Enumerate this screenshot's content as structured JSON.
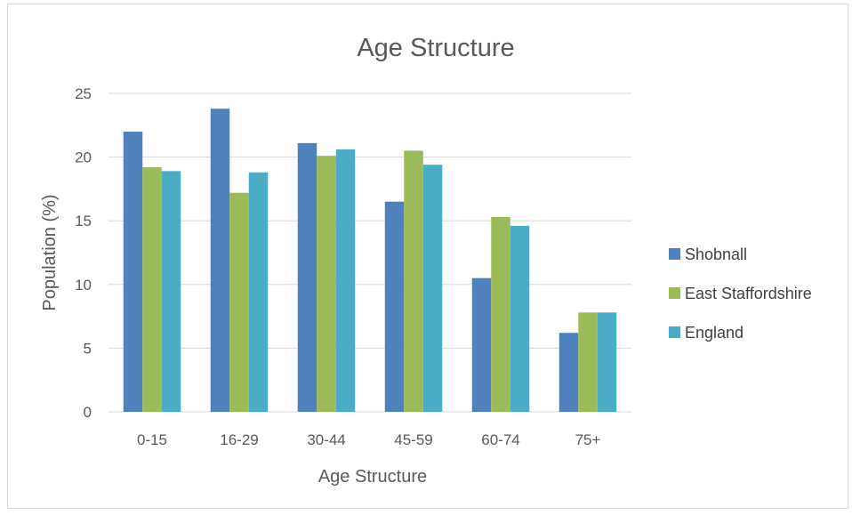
{
  "chart_data": {
    "type": "bar",
    "title": "Age Structure",
    "xlabel": "Age Structure",
    "ylabel": "Population (%)",
    "ylim": [
      0,
      25
    ],
    "yticks": [
      0,
      5,
      10,
      15,
      20,
      25
    ],
    "grid": true,
    "legend_position": "right",
    "categories": [
      "0-15",
      "16-29",
      "30-44",
      "45-59",
      "60-74",
      "75+"
    ],
    "series": [
      {
        "name": "Shobnall",
        "color": "#4f81bd",
        "values": [
          22.0,
          23.8,
          21.1,
          16.5,
          10.5,
          6.2
        ]
      },
      {
        "name": "East Staffordshire",
        "color": "#9bbb59",
        "values": [
          19.2,
          17.2,
          20.1,
          20.5,
          15.3,
          7.8
        ]
      },
      {
        "name": "England",
        "color": "#4bacc6",
        "values": [
          18.9,
          18.8,
          20.6,
          19.4,
          14.6,
          7.8
        ]
      }
    ]
  }
}
